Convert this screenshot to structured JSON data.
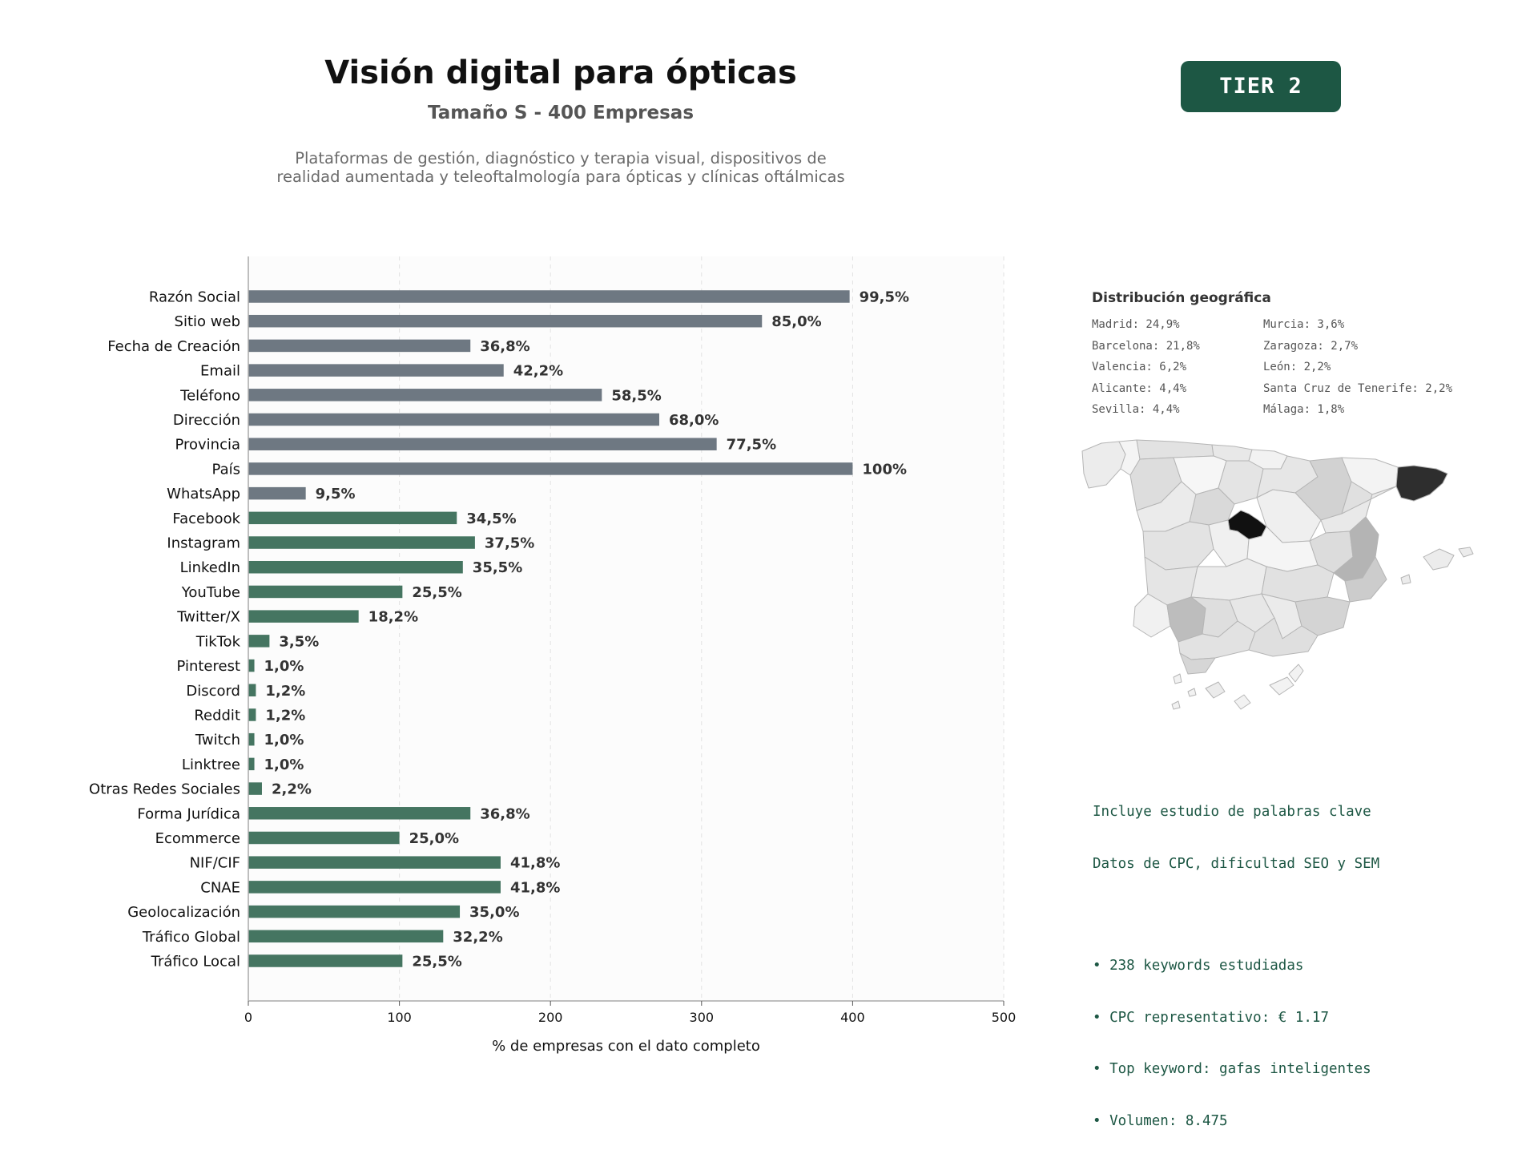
{
  "header": {
    "title": "Visión digital para ópticas",
    "subtitle": "Tamaño S - 400 Empresas",
    "description": "Plataformas de gestión, diagnóstico y terapia visual, dispositivos de realidad aumentada y teleoftalmología para ópticas y clínicas oftálmicas",
    "tier": "TIER 2"
  },
  "colors": {
    "bar_gray": "#6e7882",
    "bar_green": "#457561",
    "accent": "#1d5744"
  },
  "chart_data": {
    "type": "bar",
    "orientation": "horizontal",
    "xlabel": "% de empresas con el dato completo",
    "xlim": [
      0,
      500
    ],
    "xticks": [
      0,
      100,
      200,
      300,
      400,
      500
    ],
    "grid": "vertical dashed",
    "categories": [
      "Razón Social",
      "Sitio web",
      "Fecha de Creación",
      "Email",
      "Teléfono",
      "Dirección",
      "Provincia",
      "País",
      "WhatsApp",
      "Facebook",
      "Instagram",
      "LinkedIn",
      "YouTube",
      "Twitter/X",
      "TikTok",
      "Pinterest",
      "Discord",
      "Reddit",
      "Twitch",
      "Linktree",
      "Otras Redes Sociales",
      "Forma Jurídica",
      "Ecommerce",
      "NIF/CIF",
      "CNAE",
      "Geolocalización",
      "Tráfico Global",
      "Tráfico Local"
    ],
    "values": [
      398,
      340,
      147,
      169,
      234,
      272,
      310,
      400,
      38,
      138,
      150,
      142,
      102,
      73,
      14,
      4,
      5,
      5,
      4,
      4,
      9,
      147,
      100,
      167,
      167,
      140,
      129,
      102
    ],
    "labels": [
      "99,5%",
      "85,0%",
      "36,8%",
      "42,2%",
      "58,5%",
      "68,0%",
      "77,5%",
      "100%",
      "9,5%",
      "34,5%",
      "37,5%",
      "35,5%",
      "25,5%",
      "18,2%",
      "3,5%",
      "1,0%",
      "1,2%",
      "1,2%",
      "1,0%",
      "1,0%",
      "2,2%",
      "36,8%",
      "25,0%",
      "41,8%",
      "41,8%",
      "35,0%",
      "32,2%",
      "25,5%"
    ],
    "groups": [
      "gray",
      "gray",
      "gray",
      "gray",
      "gray",
      "gray",
      "gray",
      "gray",
      "gray",
      "green",
      "green",
      "green",
      "green",
      "green",
      "green",
      "green",
      "green",
      "green",
      "green",
      "green",
      "green",
      "green",
      "green",
      "green",
      "green",
      "green",
      "green",
      "green"
    ]
  },
  "geo": {
    "title": "Distribución geográfica",
    "items": [
      "Madrid: 24,9%",
      "Murcia: 3,6%",
      "Barcelona: 21,8%",
      "Zaragoza: 2,7%",
      "Valencia: 6,2%",
      "León: 2,2%",
      "Alicante: 4,4%",
      "Santa Cruz de Tenerife: 2,2%",
      "Sevilla: 4,4%",
      "Málaga: 1,8%"
    ]
  },
  "keywords": {
    "line1": "Incluye estudio de palabras clave",
    "line2": "Datos de CPC, dificultad SEO y SEM",
    "bullets": [
      "• 238 keywords estudiadas",
      "• CPC representativo: € 1.17",
      "• Top keyword: gafas inteligentes",
      "• Volumen: 8.475"
    ]
  }
}
